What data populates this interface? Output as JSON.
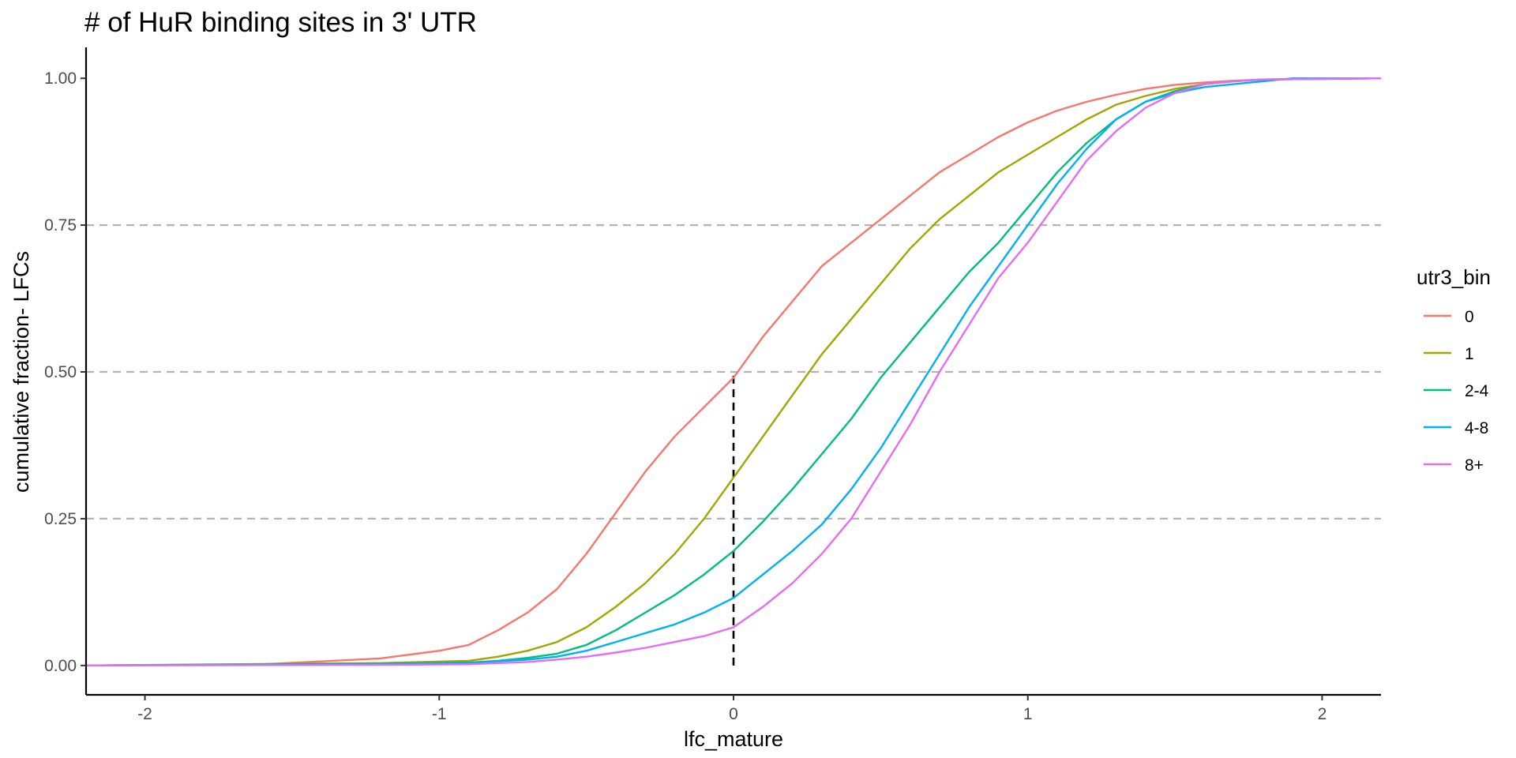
{
  "chart_data": {
    "type": "line",
    "title": "# of HuR binding sites in 3' UTR",
    "xlabel": "lfc_mature",
    "ylabel": "cumulative fraction- LFCs",
    "xlim": [
      -2.2,
      2.2
    ],
    "ylim": [
      -0.05,
      1.05
    ],
    "x_ticks": [
      -2,
      -1,
      0,
      1,
      2
    ],
    "x_tick_labels": [
      "-2",
      "-1",
      "0",
      "1",
      "2"
    ],
    "y_ticks": [
      0,
      0.25,
      0.5,
      0.75,
      1
    ],
    "y_tick_labels": [
      "0.00",
      "0.25",
      "0.50",
      "0.75",
      "1.00"
    ],
    "hlines": [
      0.25,
      0.5,
      0.75
    ],
    "vline": {
      "x": 0,
      "y_from": 0,
      "y_to": 0.5
    },
    "grid": false,
    "legend": {
      "title": "utr3_bin",
      "position": "right"
    },
    "series": [
      {
        "name": "0",
        "color": "#F8766D",
        "x": [
          -2.2,
          -1.6,
          -1.2,
          -1.0,
          -0.9,
          -0.8,
          -0.7,
          -0.6,
          -0.5,
          -0.4,
          -0.3,
          -0.2,
          -0.1,
          0.0,
          0.1,
          0.2,
          0.3,
          0.4,
          0.5,
          0.6,
          0.7,
          0.8,
          0.9,
          1.0,
          1.1,
          1.2,
          1.3,
          1.4,
          1.5,
          1.6,
          1.7,
          1.8,
          2.2
        ],
        "y": [
          0.0,
          0.002,
          0.012,
          0.025,
          0.035,
          0.06,
          0.09,
          0.13,
          0.19,
          0.26,
          0.33,
          0.39,
          0.44,
          0.49,
          0.56,
          0.62,
          0.68,
          0.72,
          0.76,
          0.8,
          0.84,
          0.87,
          0.9,
          0.925,
          0.945,
          0.96,
          0.972,
          0.982,
          0.989,
          0.993,
          0.996,
          0.998,
          1.0
        ]
      },
      {
        "name": "1",
        "color": "#A3A500",
        "x": [
          -2.2,
          -1.2,
          -0.9,
          -0.8,
          -0.7,
          -0.6,
          -0.5,
          -0.4,
          -0.3,
          -0.2,
          -0.1,
          0.0,
          0.1,
          0.2,
          0.3,
          0.4,
          0.5,
          0.6,
          0.7,
          0.8,
          0.9,
          1.0,
          1.1,
          1.2,
          1.3,
          1.4,
          1.5,
          1.6,
          1.7,
          1.8,
          2.2
        ],
        "y": [
          0.0,
          0.004,
          0.008,
          0.015,
          0.025,
          0.04,
          0.065,
          0.1,
          0.14,
          0.19,
          0.25,
          0.32,
          0.39,
          0.46,
          0.53,
          0.59,
          0.65,
          0.71,
          0.76,
          0.8,
          0.84,
          0.87,
          0.9,
          0.93,
          0.955,
          0.97,
          0.982,
          0.99,
          0.995,
          0.998,
          1.0
        ]
      },
      {
        "name": "2-4",
        "color": "#00BF7D",
        "x": [
          -2.2,
          -1.2,
          -0.9,
          -0.8,
          -0.7,
          -0.6,
          -0.5,
          -0.4,
          -0.3,
          -0.2,
          -0.1,
          0.0,
          0.1,
          0.2,
          0.3,
          0.4,
          0.5,
          0.6,
          0.7,
          0.8,
          0.9,
          1.0,
          1.1,
          1.2,
          1.3,
          1.4,
          1.5,
          1.6,
          1.7,
          1.8,
          2.2
        ],
        "y": [
          0.0,
          0.003,
          0.005,
          0.008,
          0.013,
          0.02,
          0.035,
          0.06,
          0.09,
          0.12,
          0.155,
          0.195,
          0.245,
          0.3,
          0.36,
          0.42,
          0.49,
          0.55,
          0.61,
          0.67,
          0.72,
          0.78,
          0.84,
          0.89,
          0.93,
          0.96,
          0.978,
          0.99,
          0.995,
          0.998,
          1.0
        ]
      },
      {
        "name": "4-8",
        "color": "#00B0F6",
        "x": [
          -2.2,
          -1.2,
          -0.9,
          -0.8,
          -0.7,
          -0.6,
          -0.5,
          -0.4,
          -0.3,
          -0.2,
          -0.1,
          0.0,
          0.1,
          0.2,
          0.3,
          0.4,
          0.5,
          0.6,
          0.7,
          0.8,
          0.9,
          1.0,
          1.1,
          1.2,
          1.3,
          1.4,
          1.5,
          1.6,
          1.7,
          1.8,
          1.9,
          2.2
        ],
        "y": [
          0.0,
          0.002,
          0.004,
          0.007,
          0.01,
          0.015,
          0.025,
          0.04,
          0.055,
          0.07,
          0.09,
          0.115,
          0.155,
          0.195,
          0.24,
          0.3,
          0.37,
          0.45,
          0.53,
          0.61,
          0.68,
          0.75,
          0.82,
          0.88,
          0.93,
          0.96,
          0.975,
          0.985,
          0.99,
          0.995,
          1.0,
          1.0
        ]
      },
      {
        "name": "8+",
        "color": "#E76BF3",
        "x": [
          -2.2,
          -1.2,
          -0.9,
          -0.8,
          -0.7,
          -0.6,
          -0.5,
          -0.4,
          -0.3,
          -0.2,
          -0.1,
          0.0,
          0.1,
          0.2,
          0.3,
          0.4,
          0.5,
          0.6,
          0.7,
          0.8,
          0.9,
          1.0,
          1.1,
          1.2,
          1.3,
          1.4,
          1.5,
          1.6,
          1.7,
          1.8,
          2.2
        ],
        "y": [
          0.0,
          0.001,
          0.002,
          0.004,
          0.006,
          0.01,
          0.015,
          0.022,
          0.03,
          0.04,
          0.05,
          0.065,
          0.1,
          0.14,
          0.19,
          0.25,
          0.33,
          0.41,
          0.5,
          0.58,
          0.66,
          0.72,
          0.79,
          0.86,
          0.91,
          0.95,
          0.975,
          0.99,
          0.995,
          0.998,
          1.0
        ]
      }
    ]
  }
}
